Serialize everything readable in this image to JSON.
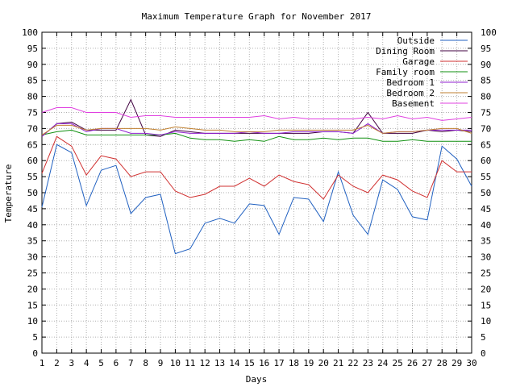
{
  "chart_data": {
    "type": "line",
    "title": "Maximum Temperature Graph for November 2017",
    "xlabel": "Days",
    "ylabel": "Temperature",
    "xlim": [
      1,
      30
    ],
    "ylim": [
      0,
      100
    ],
    "x_ticks": [
      1,
      2,
      3,
      4,
      5,
      6,
      7,
      8,
      9,
      10,
      11,
      12,
      13,
      14,
      15,
      16,
      17,
      18,
      19,
      20,
      21,
      22,
      23,
      24,
      25,
      26,
      27,
      28,
      29,
      30
    ],
    "y_ticks": [
      0,
      5,
      10,
      15,
      20,
      25,
      30,
      35,
      40,
      45,
      50,
      55,
      60,
      65,
      70,
      75,
      80,
      85,
      90,
      95,
      100
    ],
    "grid": true,
    "legend_position": "top-right",
    "x": [
      1,
      2,
      3,
      4,
      5,
      6,
      7,
      8,
      9,
      10,
      11,
      12,
      13,
      14,
      15,
      16,
      17,
      18,
      19,
      20,
      21,
      22,
      23,
      24,
      25,
      26,
      27,
      28,
      29,
      30
    ],
    "series": [
      {
        "name": "Outside",
        "color": "#2060c0",
        "values": [
          45.5,
          65,
          62.5,
          46,
          57,
          58.5,
          43.5,
          48.5,
          49.5,
          31,
          32.5,
          40.5,
          42,
          40.5,
          46.5,
          46,
          37,
          48.5,
          48,
          41,
          56.5,
          43,
          37,
          54,
          51,
          42.5,
          41.5,
          64.5,
          60.5,
          52
        ]
      },
      {
        "name": "Dining Room",
        "color": "#400040",
        "values": [
          67.5,
          71.5,
          72,
          69.5,
          69.5,
          69.5,
          79,
          68,
          67.5,
          69.5,
          69,
          68.5,
          68.5,
          68.5,
          68.5,
          68.5,
          68.5,
          68.5,
          68.5,
          69,
          69,
          68.5,
          75,
          68.5,
          68.5,
          68.5,
          69.5,
          69,
          69.5,
          69
        ]
      },
      {
        "name": "Garage",
        "color": "#d03030",
        "values": [
          56,
          67.5,
          64.5,
          55.5,
          61.5,
          60.5,
          55,
          56.5,
          56.5,
          50.5,
          48.5,
          49.5,
          52,
          52,
          54.5,
          52,
          55.5,
          53.5,
          52.5,
          48,
          55.5,
          52,
          50,
          55.5,
          54,
          50.5,
          48.5,
          60,
          56.5,
          56.5
        ]
      },
      {
        "name": "Family room",
        "color": "#109010",
        "values": [
          68,
          69,
          69.5,
          68,
          68,
          68,
          68,
          68,
          68,
          68.5,
          67,
          66.5,
          66.5,
          66,
          66.5,
          66,
          67.5,
          66.5,
          66.5,
          67,
          66.5,
          67,
          67,
          66,
          66,
          66.5,
          66,
          66,
          66,
          66
        ]
      },
      {
        "name": "Bedroom 1",
        "color": "#9020d0",
        "values": [
          67.5,
          71.5,
          71.5,
          69,
          70,
          70,
          68.5,
          68.5,
          68,
          69,
          68.5,
          68.5,
          68.5,
          68.5,
          69,
          68.5,
          68.5,
          69,
          69,
          69,
          69,
          68.5,
          71.5,
          68.5,
          69,
          69,
          69.5,
          69.5,
          69.5,
          69.5
        ]
      },
      {
        "name": "Bedroom 2",
        "color": "#c08030",
        "values": [
          68,
          71,
          71,
          69.5,
          70,
          70,
          70,
          70,
          69.5,
          70.5,
          70,
          69.5,
          69.5,
          69,
          69,
          69,
          69.5,
          69.5,
          69.5,
          69.5,
          69.5,
          69.5,
          71,
          68.5,
          69,
          69,
          69.5,
          70,
          70,
          68.5
        ]
      },
      {
        "name": "Basement",
        "color": "#e040e0",
        "values": [
          75,
          76.5,
          76.5,
          75,
          75,
          75,
          73.5,
          74,
          74,
          73.5,
          73.5,
          73.5,
          73.5,
          73.5,
          73.5,
          74,
          73,
          73.5,
          73,
          73,
          73,
          73,
          73.5,
          73,
          74,
          73,
          73.5,
          72.5,
          73,
          73.5
        ]
      }
    ]
  }
}
